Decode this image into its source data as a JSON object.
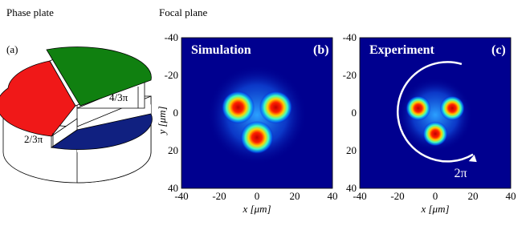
{
  "phase_plate": {
    "title": "Phase plate",
    "label": "(a)",
    "step_upper": "4/3π",
    "step_lower": "2/3π"
  },
  "focal_plane": {
    "title": "Focal plane",
    "y_axis": "y [μm]",
    "panels": [
      {
        "name": "Simulation",
        "label": "(b)",
        "x_axis": "x [μm]",
        "x_ticks": [
          "-40",
          "-20",
          "0",
          "20",
          "40"
        ],
        "y_ticks": [
          "-40",
          "-20",
          "0",
          "20",
          "40"
        ]
      },
      {
        "name": "Experiment",
        "label": "(c)",
        "x_axis": "x [μm]",
        "x_ticks": [
          "-40",
          "-20",
          "0",
          "20",
          "40"
        ],
        "y_ticks": [
          "-40",
          "-20",
          "0",
          "20",
          "40"
        ],
        "annotation": "2π"
      }
    ]
  }
}
